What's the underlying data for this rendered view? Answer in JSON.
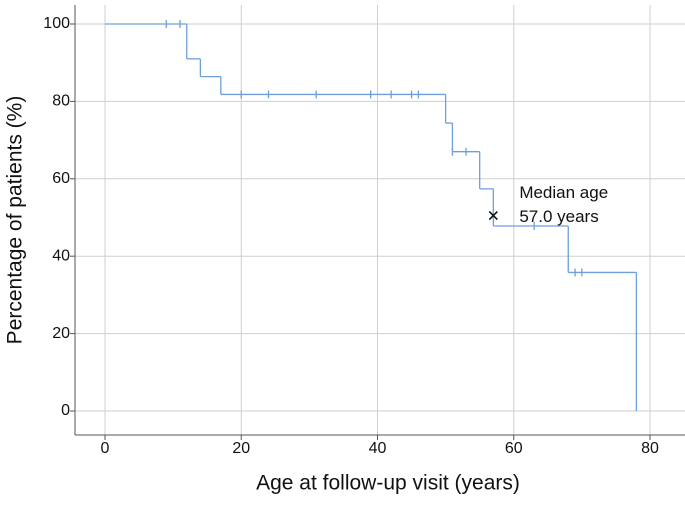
{
  "chart_data": {
    "type": "step",
    "xlabel": "Age at follow-up visit (years)",
    "ylabel": "Percentage of patients (%)",
    "x": [
      0,
      12,
      14,
      17,
      50,
      51,
      55,
      57,
      68,
      78
    ],
    "values": [
      100,
      91,
      86.4,
      81.8,
      74.4,
      67,
      57.4,
      47.8,
      35.8,
      0
    ],
    "color": "#6f9fd8",
    "censored": {
      "x": [
        9,
        11,
        20,
        24,
        31,
        39,
        42,
        45,
        46,
        51,
        53,
        63,
        69,
        70
      ],
      "values": [
        100,
        100,
        81.8,
        81.8,
        81.8,
        81.8,
        81.8,
        81.8,
        81.8,
        67,
        67,
        47.8,
        35.8,
        35.8
      ]
    },
    "median": {
      "x": 57,
      "value": 50.5,
      "label": [
        "Median age",
        "57.0 years"
      ]
    },
    "xlim": [
      0,
      80
    ],
    "ylim": [
      0,
      100
    ],
    "xticks": [
      0,
      20,
      40,
      60,
      80
    ],
    "yticks": [
      0,
      20,
      40,
      60,
      80,
      100
    ],
    "grid": true
  }
}
